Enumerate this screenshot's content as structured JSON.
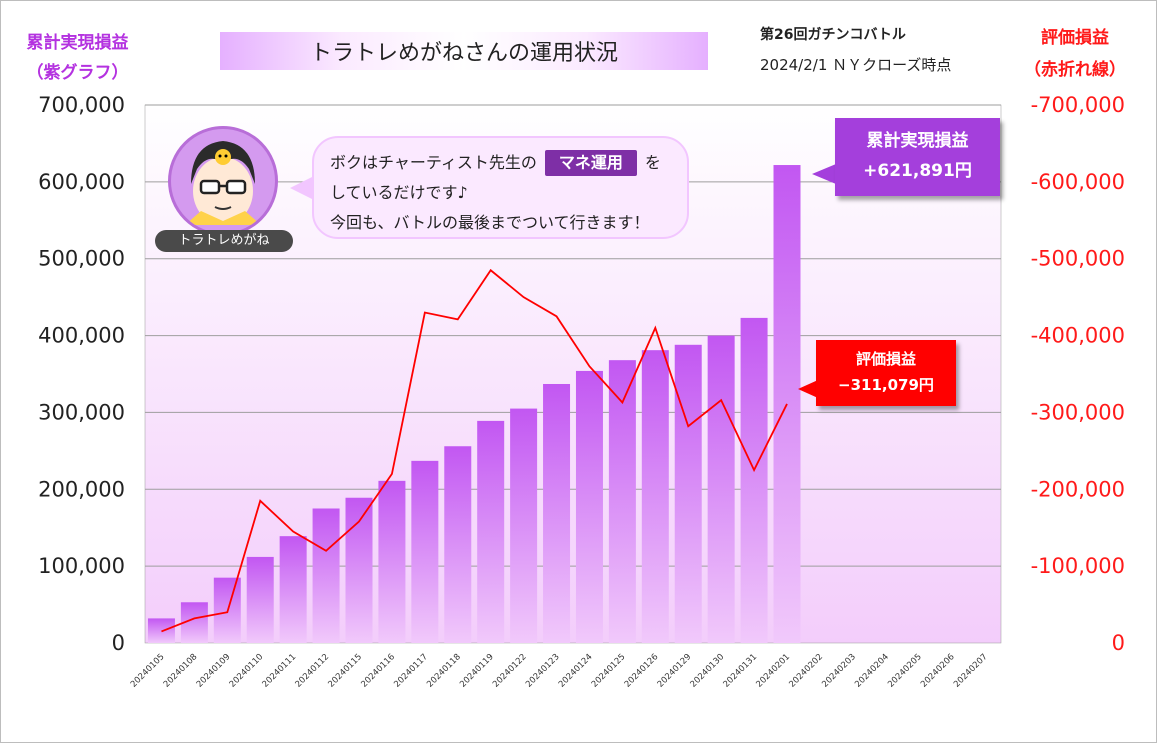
{
  "header": {
    "left_axis_title_line1": "累計実現損益",
    "left_axis_title_line2": "（紫グラフ）",
    "right_axis_title_line1": "評価損益",
    "right_axis_title_line2": "（赤折れ線）",
    "title": "トラトレめがねさんの運用状況",
    "battle": "第26回ガチンコバトル",
    "date": "2024/2/1 ＮＹクローズ時点"
  },
  "bubble": {
    "line1_before": "ボクはチャーティスト先生の",
    "highlight": "マネ運用",
    "line1_after": "を",
    "line2": "しているだけです♪",
    "line3": "今回も、バトルの最後までついて行きます！"
  },
  "avatar": {
    "name": "トラトレめがね",
    "icon": "megane-character-icon"
  },
  "callouts": {
    "realized_label": "累計実現損益",
    "realized_value": "+621,891円",
    "unrealized_label": "評価損益",
    "unrealized_value": "−311,079円"
  },
  "colors": {
    "bar": "#c45ff0",
    "line": "#ff0000",
    "accent_purple": "#a43fdc"
  },
  "chart_data": {
    "type": "bar+line",
    "categories": [
      "20240105",
      "20240108",
      "20240109",
      "20240110",
      "20240111",
      "20240112",
      "20240115",
      "20240116",
      "20240117",
      "20240118",
      "20240119",
      "20240122",
      "20240123",
      "20240124",
      "20240125",
      "20240126",
      "20240129",
      "20240130",
      "20240131",
      "20240201",
      "20240202",
      "20240203",
      "20240204",
      "20240205",
      "20240206",
      "20240207"
    ],
    "series": [
      {
        "name": "累計実現損益（紫グラフ）",
        "kind": "bar",
        "axis": "left",
        "values": [
          32000,
          53000,
          85000,
          112000,
          139000,
          175000,
          189000,
          211000,
          237000,
          256000,
          289000,
          305000,
          337000,
          354000,
          368000,
          381000,
          388000,
          400000,
          423000,
          621891,
          null,
          null,
          null,
          null,
          null,
          null
        ]
      },
      {
        "name": "評価損益（赤折れ線）",
        "kind": "line",
        "axis": "right",
        "values": [
          -15000,
          -32000,
          -40000,
          -185000,
          -145000,
          -120000,
          -158000,
          -220000,
          -430000,
          -421000,
          -485000,
          -450000,
          -425000,
          -360000,
          -313000,
          -410000,
          -282000,
          -316000,
          -225000,
          -311079,
          null,
          null,
          null,
          null,
          null,
          null
        ]
      }
    ],
    "left_axis": {
      "min": 0,
      "max": 700000,
      "ticks": [
        "0",
        "100,000",
        "200,000",
        "300,000",
        "400,000",
        "500,000",
        "600,000",
        "700,000"
      ]
    },
    "right_axis": {
      "min": 0,
      "max": -700000,
      "ticks": [
        "0",
        "-100,000",
        "-200,000",
        "-300,000",
        "-400,000",
        "-500,000",
        "-600,000",
        "-700,000"
      ]
    },
    "grid": true
  }
}
